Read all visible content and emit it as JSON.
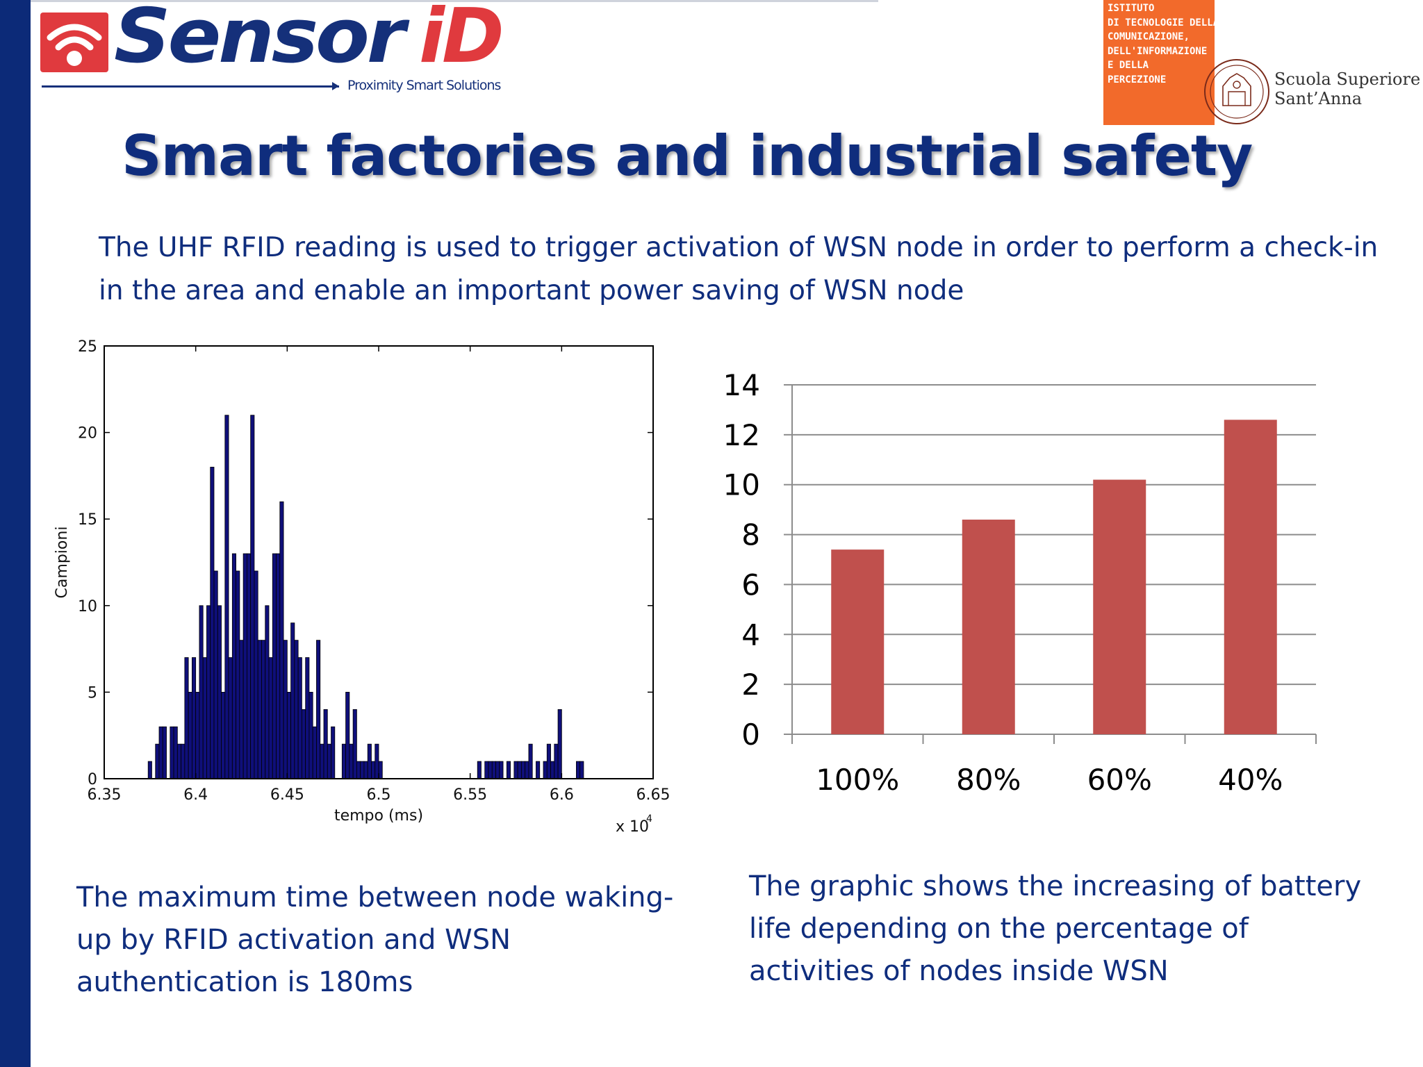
{
  "logo": {
    "brand_word_1": "Sensor",
    "brand_word_2": "iD",
    "tagline": "Proximity Smart Solutions",
    "colors": {
      "brand_blue": "#15307a",
      "brand_red": "#e03a3e"
    }
  },
  "institute": {
    "lines": [
      "ISTITUTO",
      "DI TECNOLOGIE DELLA",
      "COMUNICAZIONE,",
      "DELL'INFORMAZIONE",
      "E DELLA",
      "PERCEZIONE"
    ],
    "school_line_1": "Scuola Superiore",
    "school_line_2": "Sant’Anna",
    "color": "#f26a2b"
  },
  "title": "Smart factories and industrial safety",
  "intro": "The UHF RFID reading is used to trigger activation of WSN node in order to perform a check-in in the area and enable an important power saving of WSN node",
  "caption_left": "The maximum time between node waking-up by RFID activation and WSN authentication is 180ms",
  "caption_right": "The graphic shows the increasing of battery life depending on the percentage of activities of nodes inside WSN",
  "chart_data": [
    {
      "type": "bar",
      "subtype": "histogram",
      "xlabel": "tempo (ms)",
      "ylabel": "Campioni",
      "x_multiplier": "x 10",
      "x_multiplier_exp": "4",
      "xlim": [
        6.35,
        6.65
      ],
      "ylim": [
        0,
        25
      ],
      "xticks": [
        "6.35",
        "6.4",
        "6.45",
        "6.5",
        "6.55",
        "6.6",
        "6.65"
      ],
      "yticks": [
        "0",
        "5",
        "10",
        "15",
        "20",
        "25"
      ],
      "bin_start": 6.35,
      "bin_width": 0.002,
      "values": [
        0,
        0,
        0,
        0,
        0,
        0,
        0,
        0,
        0,
        0,
        0,
        0,
        1,
        0,
        2,
        3,
        3,
        0,
        3,
        3,
        2,
        2,
        7,
        5,
        7,
        5,
        10,
        7,
        10,
        18,
        12,
        10,
        5,
        21,
        7,
        13,
        12,
        8,
        13,
        13,
        21,
        12,
        8,
        8,
        10,
        7,
        13,
        13,
        16,
        8,
        5,
        9,
        8,
        7,
        4,
        7,
        5,
        3,
        8,
        2,
        4,
        2,
        3,
        0,
        0,
        2,
        5,
        2,
        4,
        1,
        1,
        1,
        2,
        1,
        2,
        1,
        0,
        0,
        0,
        0,
        0,
        0,
        0,
        0,
        0,
        0,
        0,
        0,
        0,
        0,
        0,
        0,
        0,
        0,
        0,
        0,
        0,
        0,
        0,
        0,
        0,
        0,
        1,
        0,
        1,
        1,
        1,
        1,
        1,
        0,
        1,
        0,
        1,
        1,
        1,
        1,
        2,
        0,
        1,
        0,
        1,
        2,
        1,
        2,
        4,
        0,
        0,
        0,
        0,
        1,
        1,
        0,
        0,
        0,
        0,
        0,
        0,
        0,
        0,
        0,
        0,
        0,
        0,
        0,
        0,
        0,
        0,
        0,
        0,
        0,
        0
      ],
      "bar_color": "#0f0f7a",
      "grid": false
    },
    {
      "type": "bar",
      "categories": [
        "100%",
        "80%",
        "60%",
        "40%"
      ],
      "values": [
        7.4,
        8.6,
        10.2,
        12.6
      ],
      "ylim": [
        0,
        14
      ],
      "yticks": [
        "0",
        "2",
        "4",
        "6",
        "8",
        "10",
        "12",
        "14"
      ],
      "bar_color": "#c0504d",
      "grid": true
    }
  ]
}
